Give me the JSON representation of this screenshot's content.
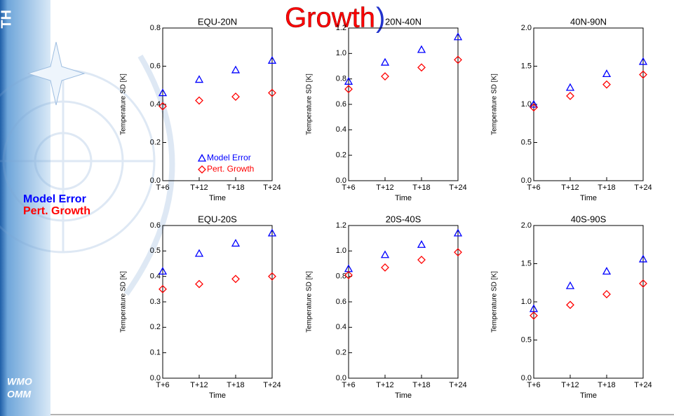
{
  "slide": {
    "corner": "TH",
    "title_word": "Growth",
    "title_paren": ")",
    "side_label_1": "Model Error",
    "side_label_2": "Pert. Growth",
    "logo_1": "WMO",
    "logo_2": "OMM"
  },
  "chart_data": [
    {
      "type": "scatter",
      "title": "EQU-20N",
      "xlabel": "Time",
      "ylabel": "Temperature SD [K]",
      "x": [
        6,
        12,
        18,
        24
      ],
      "xlim": [
        6,
        24
      ],
      "xticks": [
        {
          "value": 6,
          "label": "T+6"
        },
        {
          "value": 12,
          "label": "T+12"
        },
        {
          "value": 18,
          "label": "T+18"
        },
        {
          "value": 24,
          "label": "T+24"
        }
      ],
      "ylim": [
        0,
        0.8
      ],
      "yticks": [
        {
          "value": 0,
          "label": "0.0"
        },
        0.2,
        0.4,
        0.6,
        0.8
      ],
      "legend": "bottom-right",
      "series": [
        {
          "name": "Model Error",
          "color": "#0000ff",
          "marker": "triangle",
          "values": [
            0.46,
            0.53,
            0.58,
            0.63
          ]
        },
        {
          "name": "Pert. Growth",
          "color": "#ff0000",
          "marker": "diamond",
          "values": [
            0.39,
            0.42,
            0.44,
            0.46
          ]
        }
      ]
    },
    {
      "type": "scatter",
      "title": "20N-40N",
      "xlabel": "Time",
      "ylabel": "Temperature SD [K]",
      "x": [
        6,
        12,
        18,
        24
      ],
      "xlim": [
        6,
        24
      ],
      "xticks": [
        {
          "value": 6,
          "label": "T+6"
        },
        {
          "value": 12,
          "label": "T+12"
        },
        {
          "value": 18,
          "label": "T+18"
        },
        {
          "value": 24,
          "label": "T+24"
        }
      ],
      "ylim": [
        0,
        1.2
      ],
      "yticks": [
        {
          "value": 0,
          "label": "0.0"
        },
        0.2,
        0.4,
        0.6,
        0.8,
        {
          "value": 1,
          "label": "1.0"
        },
        1.2
      ],
      "series": [
        {
          "color": "#0000ff",
          "marker": "triangle",
          "values": [
            0.78,
            0.93,
            1.03,
            1.13
          ]
        },
        {
          "color": "#ff0000",
          "marker": "diamond",
          "values": [
            0.72,
            0.82,
            0.89,
            0.95
          ]
        }
      ]
    },
    {
      "type": "scatter",
      "title": "40N-90N",
      "xlabel": "Time",
      "ylabel": "Temperature SD [K]",
      "x": [
        6,
        12,
        18,
        24
      ],
      "xlim": [
        6,
        24
      ],
      "xticks": [
        {
          "value": 6,
          "label": "T+6"
        },
        {
          "value": 12,
          "label": "T+12"
        },
        {
          "value": 18,
          "label": "T+18"
        },
        {
          "value": 24,
          "label": "T+24"
        }
      ],
      "ylim": [
        0,
        2
      ],
      "yticks": [
        {
          "value": 0,
          "label": "0.0"
        },
        0.5,
        {
          "value": 1,
          "label": "1.0"
        },
        1.5,
        {
          "value": 2,
          "label": "2.0"
        }
      ],
      "series": [
        {
          "color": "#0000ff",
          "marker": "triangle",
          "values": [
            1.0,
            1.22,
            1.4,
            1.56
          ]
        },
        {
          "color": "#ff0000",
          "marker": "diamond",
          "values": [
            0.96,
            1.11,
            1.26,
            1.39
          ]
        }
      ]
    },
    {
      "type": "scatter",
      "title": "EQU-20S",
      "xlabel": "Time",
      "ylabel": "Temperature SD [K]",
      "x": [
        6,
        12,
        18,
        24
      ],
      "xlim": [
        6,
        24
      ],
      "xticks": [
        {
          "value": 6,
          "label": "T+6"
        },
        {
          "value": 12,
          "label": "T+12"
        },
        {
          "value": 18,
          "label": "T+18"
        },
        {
          "value": 24,
          "label": "T+24"
        }
      ],
      "ylim": [
        0,
        0.6
      ],
      "yticks": [
        {
          "value": 0,
          "label": "0.0"
        },
        0.1,
        0.2,
        0.3,
        0.4,
        0.5,
        0.6
      ],
      "series": [
        {
          "color": "#0000ff",
          "marker": "triangle",
          "values": [
            0.42,
            0.49,
            0.53,
            0.57
          ]
        },
        {
          "color": "#ff0000",
          "marker": "diamond",
          "values": [
            0.35,
            0.37,
            0.39,
            0.4
          ]
        }
      ]
    },
    {
      "type": "scatter",
      "title": "20S-40S",
      "xlabel": "Time",
      "ylabel": "Temperature SD [K]",
      "x": [
        6,
        12,
        18,
        24
      ],
      "xlim": [
        6,
        24
      ],
      "xticks": [
        {
          "value": 6,
          "label": "T+6"
        },
        {
          "value": 12,
          "label": "T+12"
        },
        {
          "value": 18,
          "label": "T+18"
        },
        {
          "value": 24,
          "label": "T+24"
        }
      ],
      "ylim": [
        0,
        1.2
      ],
      "yticks": [
        {
          "value": 0,
          "label": "0.0"
        },
        0.2,
        0.4,
        0.6,
        0.8,
        {
          "value": 1,
          "label": "1.0"
        },
        1.2
      ],
      "series": [
        {
          "color": "#0000ff",
          "marker": "triangle",
          "values": [
            0.86,
            0.97,
            1.05,
            1.14
          ]
        },
        {
          "color": "#ff0000",
          "marker": "diamond",
          "values": [
            0.81,
            0.87,
            0.93,
            0.99
          ]
        }
      ]
    },
    {
      "type": "scatter",
      "title": "40S-90S",
      "xlabel": "Time",
      "ylabel": "Temperature SD [K]",
      "x": [
        6,
        12,
        18,
        24
      ],
      "xlim": [
        6,
        24
      ],
      "xticks": [
        {
          "value": 6,
          "label": "T+6"
        },
        {
          "value": 12,
          "label": "T+12"
        },
        {
          "value": 18,
          "label": "T+18"
        },
        {
          "value": 24,
          "label": "T+24"
        }
      ],
      "ylim": [
        0,
        2
      ],
      "yticks": [
        {
          "value": 0,
          "label": "0.0"
        },
        0.5,
        {
          "value": 1,
          "label": "1.0"
        },
        1.5,
        {
          "value": 2,
          "label": "2.0"
        }
      ],
      "series": [
        {
          "color": "#0000ff",
          "marker": "triangle",
          "values": [
            0.91,
            1.21,
            1.4,
            1.56
          ]
        },
        {
          "color": "#ff0000",
          "marker": "diamond",
          "values": [
            0.82,
            0.96,
            1.1,
            1.24
          ]
        }
      ]
    }
  ]
}
